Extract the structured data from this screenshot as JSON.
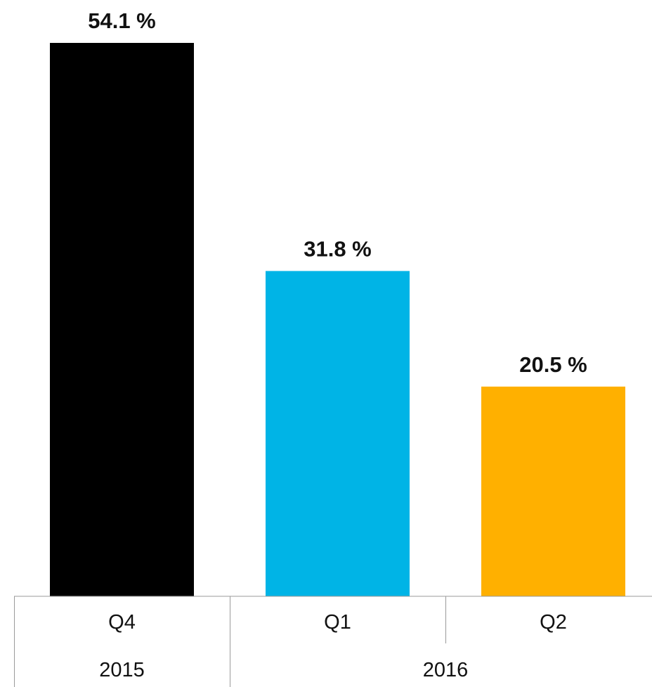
{
  "chart_data": {
    "type": "bar",
    "categories": [
      "Q4",
      "Q1",
      "Q2"
    ],
    "groups": [
      {
        "label": "2015",
        "categories": [
          "Q4"
        ]
      },
      {
        "label": "2016",
        "categories": [
          "Q1",
          "Q2"
        ]
      }
    ],
    "values": [
      54.1,
      31.8,
      20.5
    ],
    "data_labels": [
      "54.1 %",
      "31.8 %",
      "20.5 %"
    ],
    "colors": [
      "#000000",
      "#00b4e6",
      "#ffb000"
    ],
    "title": "",
    "xlabel": "",
    "ylabel": "",
    "ylim": [
      0,
      56
    ],
    "grid": false,
    "legend": "none"
  }
}
